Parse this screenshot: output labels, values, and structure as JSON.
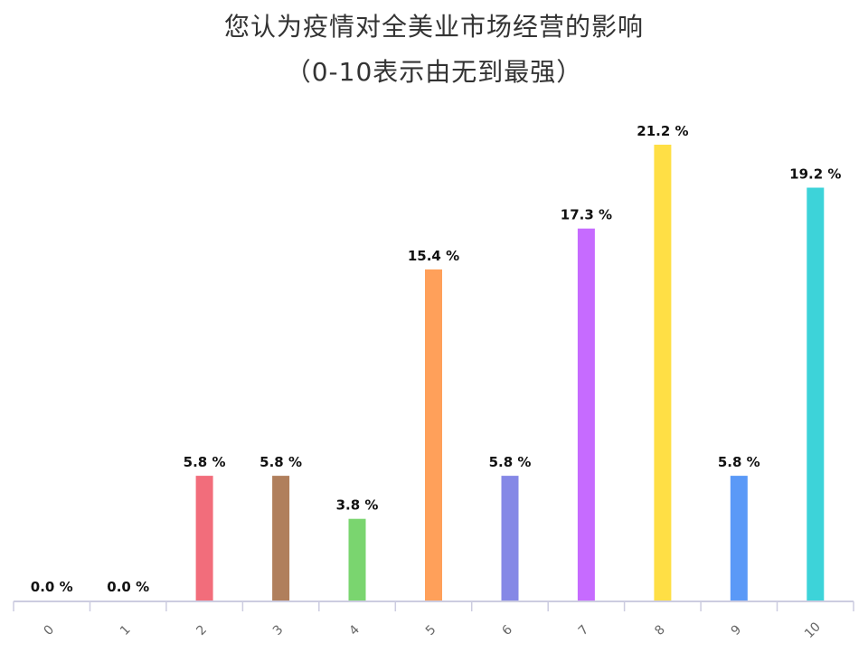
{
  "chart_data": {
    "type": "bar",
    "title": "您认为疫情对全美业市场经营的影响",
    "subtitle": "（0-10表示由无到最强）",
    "xlabel": "",
    "ylabel": "",
    "ylim": [
      0,
      21.2
    ],
    "grid": false,
    "legend": "none",
    "categories": [
      "0",
      "1",
      "2",
      "3",
      "4",
      "5",
      "6",
      "7",
      "8",
      "9",
      "10"
    ],
    "values": [
      0.0,
      0.0,
      5.8,
      5.8,
      3.8,
      15.4,
      5.8,
      17.3,
      21.2,
      5.8,
      19.2
    ],
    "data_labels": [
      "0.0 %",
      "0.0 %",
      "5.8 %",
      "5.8 %",
      "3.8 %",
      "15.4 %",
      "5.8 %",
      "17.3 %",
      "21.2 %",
      "5.8 %",
      "19.2 %"
    ],
    "colors": [
      "#f26d7b",
      "#f26d7b",
      "#f26d7b",
      "#b07f5c",
      "#7ad56f",
      "#ffa05a",
      "#8588e6",
      "#c66bff",
      "#ffdf45",
      "#5a99f7",
      "#3dd3d9"
    ],
    "axis_color": "#cccce0"
  }
}
